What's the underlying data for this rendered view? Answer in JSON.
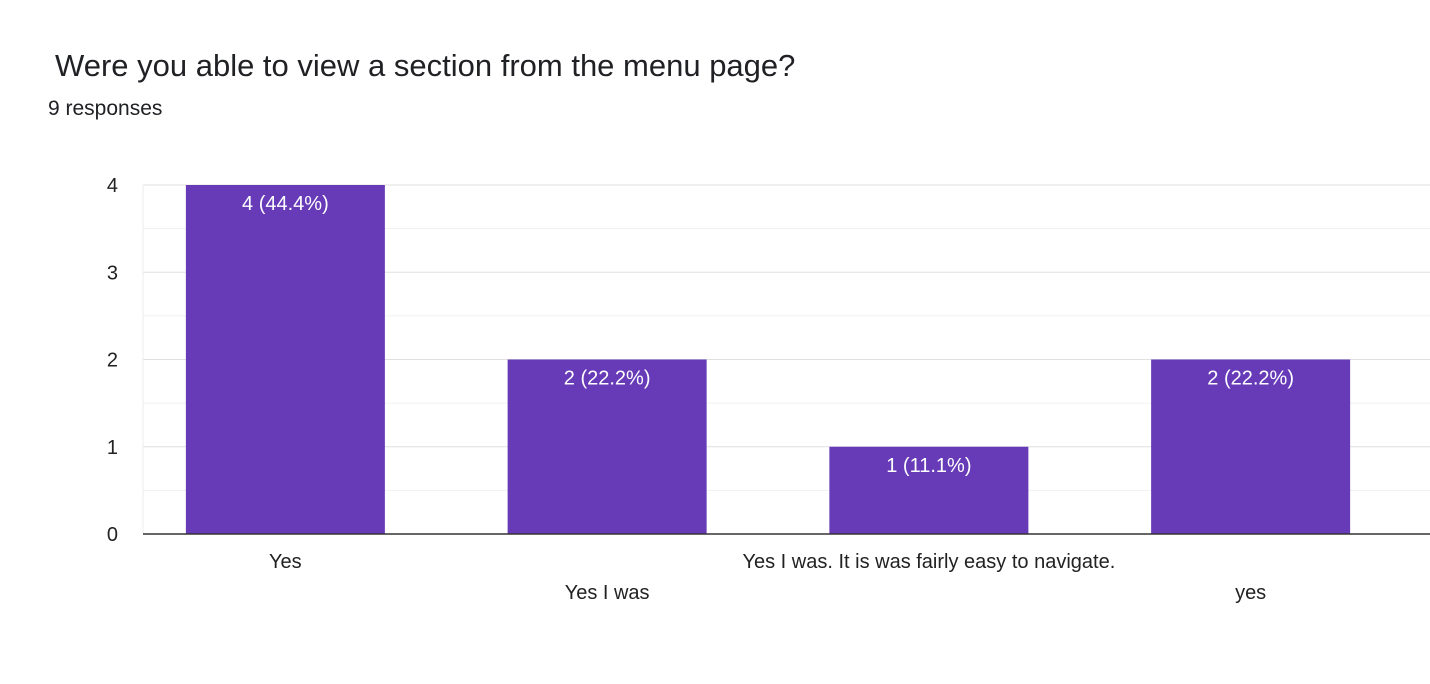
{
  "header": {
    "question": "Were you able to view a section from the menu page?",
    "responses": "9 responses"
  },
  "colors": {
    "bar": "#673ab7",
    "gridline": "#e6e6e6",
    "baseline": "#333333"
  },
  "chart_data": {
    "type": "bar",
    "categories": [
      "Yes",
      "Yes I was",
      "Yes I was. It is was fairly easy to navigate.",
      "yes"
    ],
    "values": [
      4,
      2,
      1,
      2
    ],
    "data_labels": [
      "4 (44.4%)",
      "2 (22.2%)",
      "1 (11.1%)",
      "2 (22.2%)"
    ],
    "yticks": [
      0,
      1,
      2,
      3,
      4
    ],
    "ylim": [
      0,
      4
    ],
    "grid": true,
    "legend": "none"
  }
}
